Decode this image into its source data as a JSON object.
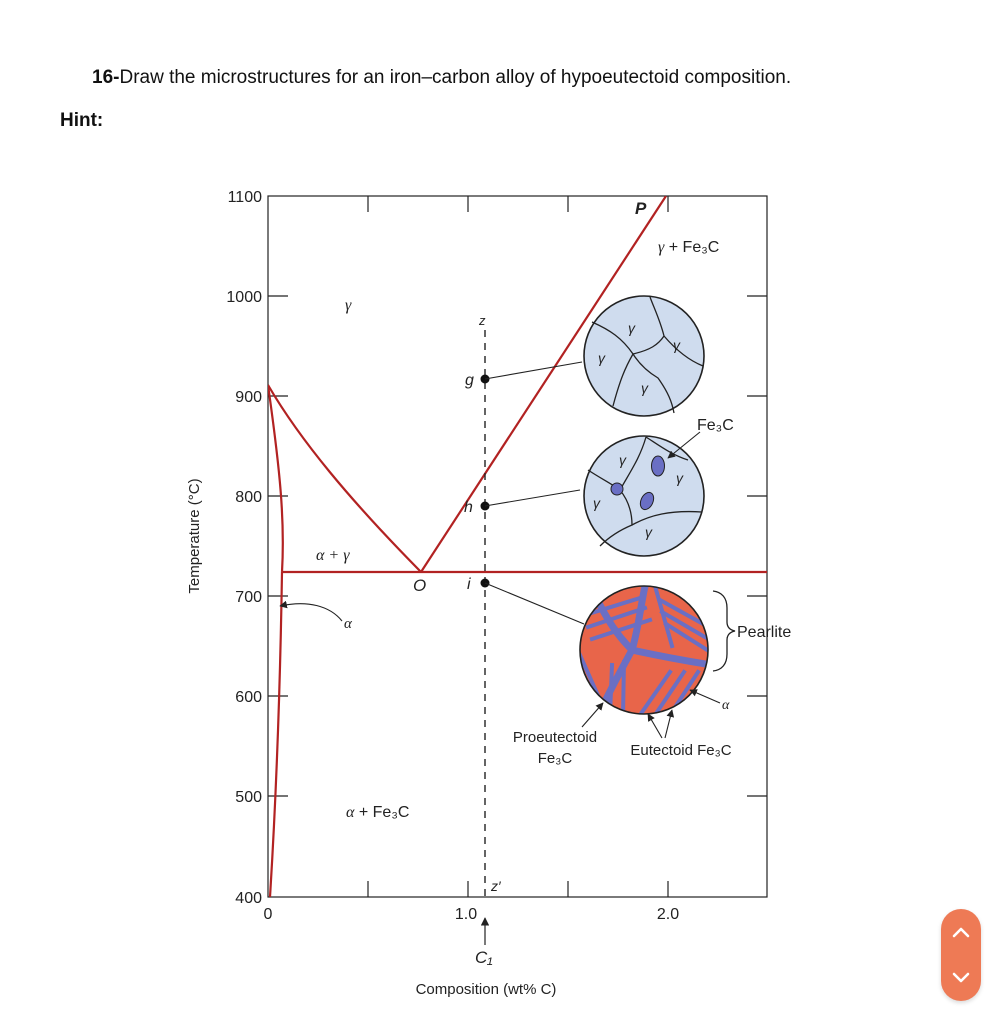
{
  "question": {
    "number": "16-",
    "text": "Draw the microstructures for an iron–carbon alloy of hypoeutectoid composition."
  },
  "hint_label": "Hint:",
  "figure": {
    "axes": {
      "ylabel": "Temperature (°C)",
      "xlabel": "Composition (wt% C)",
      "y_ticks": [
        "1100",
        "1000",
        "900",
        "800",
        "700",
        "600",
        "500",
        "400"
      ],
      "x_ticks": [
        "0",
        "1.0",
        "2.0"
      ],
      "y_range": [
        400,
        1100
      ],
      "x_range": [
        0,
        2.5
      ]
    },
    "phase_labels": {
      "gamma": "γ",
      "gamma_fe3c_greek": "γ",
      "gamma_fe3c_rest": " + Fe₃C",
      "alpha_gamma": "α + γ",
      "alpha": "α",
      "alpha_fe3c_greek": "α",
      "alpha_fe3c_rest": " + Fe₃C"
    },
    "points": {
      "P": "P",
      "O": "O",
      "g": "g",
      "h": "h",
      "i": "i",
      "z": "z",
      "z_prime": "z′",
      "C1": "C₁"
    },
    "micro_labels": {
      "g1": "γ",
      "g2": "γ",
      "g3": "γ",
      "g4": "γ",
      "h1": "γ",
      "h2": "γ",
      "h3": "γ",
      "h4": "γ",
      "fe3c": "Fe₃C",
      "pearlite": "Pearlite",
      "alpha": "α",
      "proeutectoid_line1": "Proeutectoid",
      "proeutectoid_line2": "Fe₃C",
      "eutectoid": "Eutectoid Fe₃C"
    },
    "colors": {
      "phase_line": "#b22222",
      "gamma_grain": "#cfdcee",
      "fe3c_particle": "#6a6fc4",
      "pearlite_alpha": "#e8654a",
      "pearlite_fe3c": "#6a6fc4"
    }
  },
  "nav": {
    "up_icon": "chevron-up-icon",
    "down_icon": "chevron-down-icon"
  }
}
